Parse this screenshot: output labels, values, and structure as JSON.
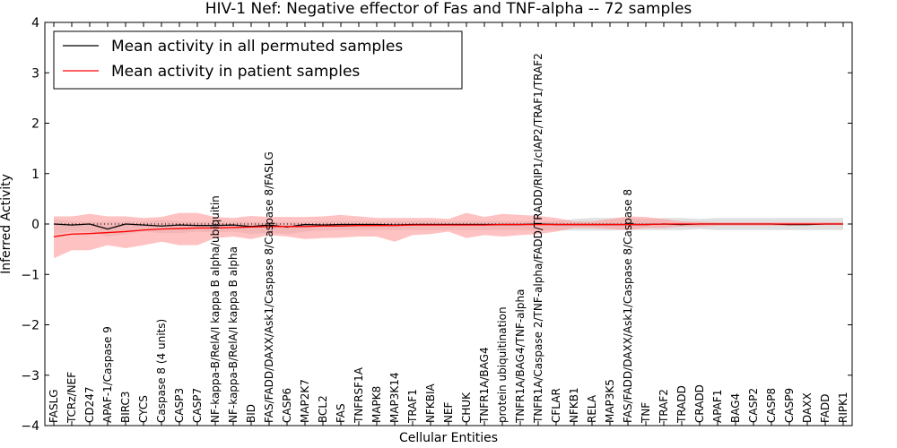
{
  "chart_data": {
    "type": "line",
    "title": "HIV-1 Nef: Negative effector of Fas and TNF-alpha -- 72 samples",
    "xlabel": "Cellular Entities",
    "ylabel": "Inferred Activity",
    "ylim": [
      -4,
      4
    ],
    "yticks": [
      -4,
      -3,
      -2,
      -1,
      0,
      1,
      2,
      3,
      4
    ],
    "ytick_labels": [
      "−4",
      "−3",
      "−2",
      "−1",
      "0",
      "1",
      "2",
      "3",
      "4"
    ],
    "grid": false,
    "legend_position": "top-left",
    "categories": [
      "FASLG",
      "TCRz/NEF",
      "CD247",
      "APAF-1/Caspase 9",
      "BIRC3",
      "CYCS",
      "Caspase 8 (4 units)",
      "CASP3",
      "CASP7",
      "NF-kappa-B/RelA/I kappa B alpha/ubiquitin",
      "NF-kappa-B/RelA/I kappa B alpha",
      "BID",
      "FAS/FADD/DAXX/Ask1/Caspase 8/Caspase 8/FASLG",
      "CASP6",
      "MAP2K7",
      "BCL2",
      "FAS",
      "TNFRSF1A",
      "MAPK8",
      "MAP3K14",
      "TRAF1",
      "NFKBIA",
      "NEF",
      "CHUK",
      "TNFR1A/BAG4",
      "protein ubiquitination",
      "TNFR1A/BAG4/TNF-alpha",
      "TNFR1A/Caspase 2/TNF-alpha/FADD/TRADD/RIP1/cIAP2/TRAF1/TRAF2",
      "CFLAR",
      "NFKB1",
      "RELA",
      "MAP3K5",
      "FAS/FADD/DAXX/Ask1/Caspase 8/Caspase 8",
      "TNF",
      "TRAF2",
      "TRADD",
      "CRADD",
      "APAF1",
      "BAG4",
      "CASP2",
      "CASP8",
      "CASP9",
      "DAXX",
      "FADD",
      "RIPK1"
    ],
    "series": [
      {
        "name": "Mean activity in all permuted samples",
        "color": "#000000",
        "values": [
          0.0,
          -0.02,
          0.0,
          -0.1,
          0.0,
          -0.02,
          -0.04,
          -0.02,
          -0.03,
          -0.03,
          -0.02,
          -0.05,
          -0.02,
          -0.06,
          -0.01,
          -0.02,
          -0.01,
          -0.01,
          -0.01,
          -0.02,
          -0.01,
          -0.01,
          -0.01,
          -0.01,
          -0.01,
          -0.01,
          -0.01,
          0.0,
          -0.01,
          -0.01,
          -0.01,
          -0.01,
          -0.01,
          -0.01,
          0.0,
          -0.01,
          0.0,
          0.0,
          0.0,
          0.0,
          0.0,
          -0.01,
          -0.01,
          0.0,
          0.0
        ],
        "band_color": "#bbbbbb",
        "band_low": [
          -0.2,
          -0.15,
          -0.15,
          -0.25,
          -0.2,
          -0.15,
          -0.18,
          -0.18,
          -0.15,
          -0.17,
          -0.15,
          -0.2,
          -0.17,
          -0.2,
          -0.15,
          -0.13,
          -0.12,
          -0.12,
          -0.12,
          -0.12,
          -0.12,
          -0.12,
          -0.12,
          -0.12,
          -0.12,
          -0.12,
          -0.12,
          -0.13,
          -0.13,
          -0.13,
          -0.13,
          -0.13,
          -0.12,
          -0.12,
          -0.12,
          -0.12,
          -0.1,
          -0.12,
          -0.12,
          -0.12,
          -0.12,
          -0.12,
          -0.12,
          -0.12,
          -0.12
        ],
        "band_high": [
          0.1,
          0.05,
          0.05,
          0.05,
          0.05,
          0.05,
          0.08,
          0.05,
          0.05,
          0.05,
          0.05,
          0.04,
          0.04,
          0.04,
          0.04,
          0.06,
          0.06,
          0.06,
          0.06,
          0.06,
          0.06,
          0.06,
          0.06,
          0.06,
          0.06,
          0.06,
          0.06,
          0.05,
          0.06,
          0.1,
          0.12,
          0.12,
          0.12,
          0.1,
          0.12,
          0.12,
          0.1,
          0.12,
          0.12,
          0.12,
          0.12,
          0.12,
          0.12,
          0.12,
          0.12
        ]
      },
      {
        "name": "Mean activity in patient samples",
        "color": "#ff0000",
        "values": [
          -0.25,
          -0.2,
          -0.19,
          -0.17,
          -0.15,
          -0.12,
          -0.1,
          -0.09,
          -0.08,
          -0.08,
          -0.07,
          -0.06,
          -0.05,
          -0.05,
          -0.05,
          -0.04,
          -0.04,
          -0.03,
          -0.03,
          -0.03,
          -0.02,
          -0.02,
          -0.02,
          -0.02,
          -0.02,
          -0.01,
          -0.01,
          -0.01,
          -0.01,
          -0.01,
          -0.01,
          -0.01,
          -0.01,
          -0.01,
          0.0,
          0.0,
          0.0,
          0.0,
          0.0,
          0.0,
          0.0,
          0.0,
          0.0,
          0.0,
          0.0
        ],
        "band_color": "#ff9999",
        "band_low": [
          -0.68,
          -0.52,
          -0.52,
          -0.42,
          -0.48,
          -0.42,
          -0.35,
          -0.42,
          -0.42,
          -0.28,
          -0.25,
          -0.3,
          -0.22,
          -0.25,
          -0.3,
          -0.28,
          -0.27,
          -0.25,
          -0.25,
          -0.35,
          -0.22,
          -0.2,
          -0.15,
          -0.28,
          -0.22,
          -0.25,
          -0.22,
          -0.2,
          -0.15,
          -0.08,
          -0.08,
          -0.1,
          -0.12,
          -0.08,
          -0.08,
          -0.05,
          -0.05,
          -0.03,
          -0.03,
          -0.03,
          -0.03,
          -0.03,
          -0.02,
          -0.02,
          -0.02
        ],
        "band_high": [
          0.15,
          0.15,
          0.2,
          0.15,
          0.15,
          0.12,
          0.14,
          0.22,
          0.22,
          0.14,
          0.12,
          0.16,
          0.14,
          0.14,
          0.14,
          0.15,
          0.18,
          0.15,
          0.12,
          0.12,
          0.12,
          0.12,
          0.1,
          0.22,
          0.14,
          0.2,
          0.18,
          0.16,
          0.12,
          0.05,
          0.05,
          0.1,
          0.15,
          0.14,
          0.1,
          0.05,
          0.04,
          0.03,
          0.03,
          0.03,
          0.03,
          0.03,
          0.03,
          0.03,
          0.03
        ]
      }
    ]
  }
}
